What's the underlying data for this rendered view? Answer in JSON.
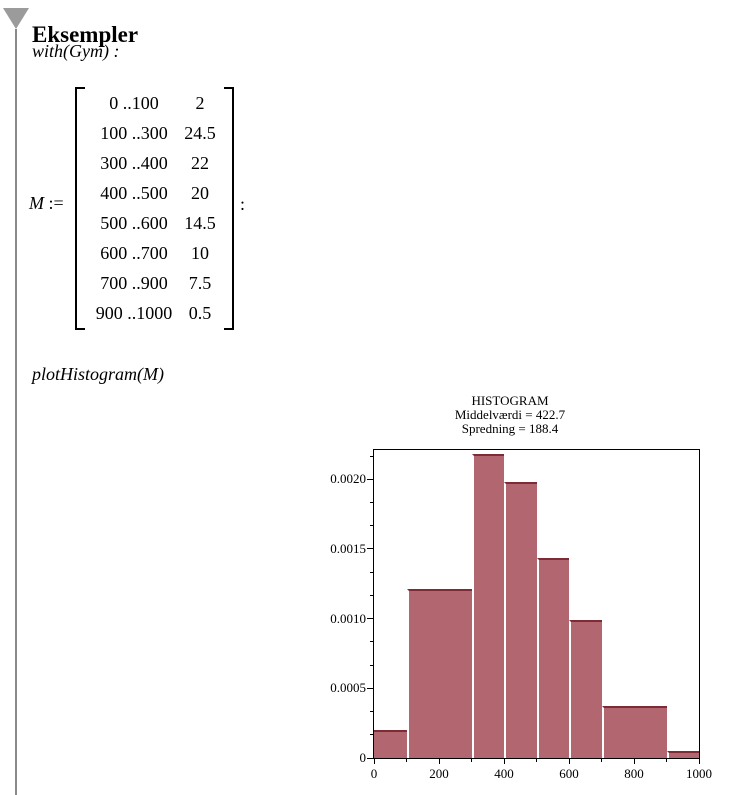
{
  "section": {
    "title": "Eksempler"
  },
  "commands": {
    "with_line": "with(Gym) :",
    "plot_line": "plotHistogram(M)"
  },
  "matrix": {
    "name": "M",
    "assign": ":= ",
    "terminator": ":",
    "rows": [
      [
        "0 ..100",
        "2"
      ],
      [
        "100 ..300",
        "24.5"
      ],
      [
        "300 ..400",
        "22"
      ],
      [
        "400 ..500",
        "20"
      ],
      [
        "500 ..600",
        "14.5"
      ],
      [
        "600 ..700",
        "10"
      ],
      [
        "700 ..900",
        "7.5"
      ],
      [
        "900 ..1000",
        "0.5"
      ]
    ]
  },
  "chart_data": {
    "type": "bar",
    "title": "HISTOGRAM",
    "subtitle_lines": [
      "Middelværdi = 422.7",
      "Spredning = 188.4"
    ],
    "xlabel": "",
    "ylabel": "",
    "xlim": [
      0,
      1000
    ],
    "ylim": [
      0,
      0.00221
    ],
    "grid": false,
    "legend": "none",
    "bins": [
      {
        "from": 0,
        "to": 100,
        "frequency_pct": 2,
        "density": 0.000198
      },
      {
        "from": 100,
        "to": 300,
        "frequency_pct": 24.5,
        "density": 0.0012129
      },
      {
        "from": 300,
        "to": 400,
        "frequency_pct": 22,
        "density": 0.0021782
      },
      {
        "from": 400,
        "to": 500,
        "frequency_pct": 20,
        "density": 0.0019802
      },
      {
        "from": 500,
        "to": 600,
        "frequency_pct": 14.5,
        "density": 0.0014356
      },
      {
        "from": 600,
        "to": 700,
        "frequency_pct": 10,
        "density": 0.0009901
      },
      {
        "from": 700,
        "to": 900,
        "frequency_pct": 7.5,
        "density": 0.0003713
      },
      {
        "from": 900,
        "to": 1000,
        "frequency_pct": 0.5,
        "density": 4.95e-05
      }
    ],
    "xticks": {
      "major": [
        0,
        200,
        400,
        600,
        800,
        1000
      ],
      "labels": [
        "0",
        "200",
        "400",
        "600",
        "800",
        "1000"
      ],
      "minor": [
        100,
        300,
        500,
        700,
        900
      ]
    },
    "yticks": {
      "major": [
        0,
        0.0005,
        0.001,
        0.0015,
        0.002
      ],
      "labels": [
        "0",
        "0.0005",
        "0.0010",
        "0.0015",
        "0.0020"
      ],
      "minor_step": 0.00016666667
    },
    "colors": {
      "bar_fill": "#b26670",
      "bar_edge": "#7d2b35",
      "gap": "#ffffff",
      "frame": "#000000"
    }
  },
  "ui": {
    "triangle_color": "#9b9b9b",
    "section_line_color": "#8a8a8a"
  }
}
